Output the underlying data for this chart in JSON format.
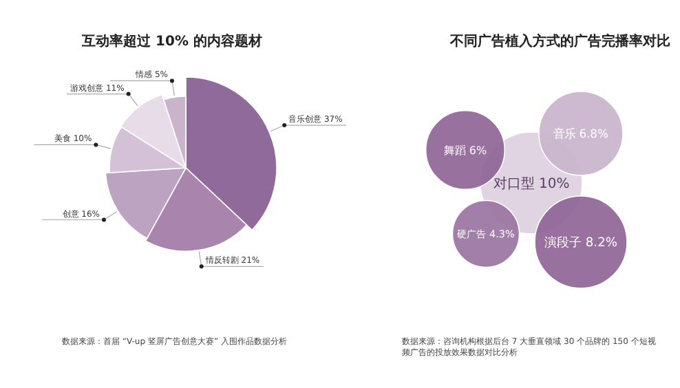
{
  "chart_data": [
    {
      "type": "pie",
      "title": "互动率超过 10% 的内容题材",
      "categories": [
        "音乐创意",
        "情反转剧",
        "创意",
        "美食",
        "游戏创意",
        "情感"
      ],
      "values": [
        37,
        21,
        16,
        10,
        11,
        5
      ],
      "value_labels": [
        "37%",
        "21%",
        "16%",
        "10%",
        "11%",
        "5%"
      ],
      "colors": [
        "#916a9c",
        "#a985ad",
        "#bda3c2",
        "#d4c1d7",
        "#e7dce8",
        "#c9b4cc"
      ],
      "annotations": [
        "数据来源：首届 “V-up 竖屏广告创意大赛” 入围作品数据分析"
      ]
    },
    {
      "type": "other",
      "title": "不同广告植入方式的广告完播率对比",
      "categories": [
        "舞蹈",
        "音乐",
        "对口型",
        "硬广告",
        "演段子"
      ],
      "values": [
        6,
        6.8,
        10,
        4.3,
        8.2
      ],
      "value_labels": [
        "6%",
        "6.8%",
        "10%",
        "4.3%",
        "8.2%"
      ],
      "colors": [
        "#8f6597",
        "#c9b4cc",
        "#ddd0df",
        "#9a74a1",
        "#8f6597"
      ],
      "annotations": [
        "数据来源：咨询机构根据后台 7 大垂直领域 30 个品牌的 150 个短视频广告的投放效果数据对比分析"
      ]
    }
  ]
}
